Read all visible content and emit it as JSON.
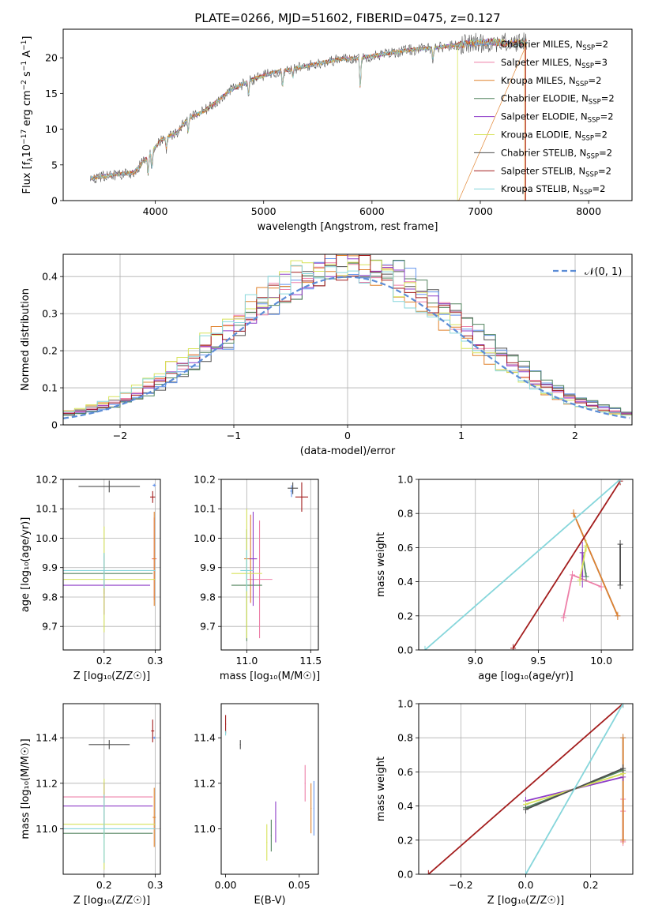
{
  "figure": {
    "title": "PLATE=0266, MJD=51602, FIBERID=0475, z=0.127"
  },
  "models": [
    {
      "name": "Chabrier MILES",
      "nssp": "2",
      "color": "#6495ed"
    },
    {
      "name": "Salpeter MILES",
      "nssp": "3",
      "color": "#ed7fa8"
    },
    {
      "name": "Kroupa MILES",
      "nssp": "2",
      "color": "#e0822c"
    },
    {
      "name": "Chabrier ELODIE",
      "nssp": "2",
      "color": "#52835e"
    },
    {
      "name": "Salpeter ELODIE",
      "nssp": "2",
      "color": "#8e3cc8"
    },
    {
      "name": "Kroupa ELODIE",
      "nssp": "2",
      "color": "#d7e35a"
    },
    {
      "name": "Chabrier STELIB",
      "nssp": "2",
      "color": "#4d4d4d"
    },
    {
      "name": "Salpeter STELIB",
      "nssp": "2",
      "color": "#a31d1d"
    },
    {
      "name": "Kroupa STELIB",
      "nssp": "2",
      "color": "#86d6db"
    }
  ],
  "chart_data": [
    {
      "id": "spectrum",
      "type": "line",
      "xlabel": "wavelength [Angstrom, rest frame]",
      "ylabel_parts": [
        "Flux [f",
        "λ",
        "10",
        "−17",
        " erg cm",
        "−2",
        " s",
        "−1",
        " A",
        "−1",
        "]"
      ],
      "xlim": [
        3150,
        8400
      ],
      "ylim": [
        0,
        24
      ],
      "xticks": [
        4000,
        5000,
        6000,
        7000,
        8000
      ],
      "yticks": [
        0,
        5,
        10,
        15,
        20
      ],
      "grid": false,
      "legend": "upper right",
      "legend_suffix": "SSP",
      "continuum": [
        [
          3400,
          3.1
        ],
        [
          3600,
          3.6
        ],
        [
          3800,
          3.9
        ],
        [
          3950,
          6.5
        ],
        [
          4050,
          8.5
        ],
        [
          4200,
          9.5
        ],
        [
          4300,
          11.5
        ],
        [
          4450,
          12.5
        ],
        [
          4700,
          15.5
        ],
        [
          4900,
          17
        ],
        [
          5100,
          18
        ],
        [
          5300,
          18.5
        ],
        [
          5500,
          19.2
        ],
        [
          5700,
          19.8
        ],
        [
          5900,
          20
        ],
        [
          6100,
          20.5
        ],
        [
          6300,
          21
        ],
        [
          6500,
          21.3
        ],
        [
          6700,
          21.6
        ],
        [
          6900,
          22
        ],
        [
          7100,
          22.2
        ],
        [
          7300,
          22
        ],
        [
          7500,
          22.4
        ],
        [
          7700,
          22.7
        ],
        [
          7900,
          22.8
        ],
        [
          8100,
          22.9
        ],
        [
          8200,
          22.8
        ]
      ]
    },
    {
      "id": "residuals",
      "type": "histogram",
      "xlabel": "(data-model)/error",
      "ylabel": "Normed distribution",
      "xlim": [
        -2.5,
        2.5
      ],
      "ylim": [
        0,
        0.46
      ],
      "xticks": [
        -2,
        -1,
        0,
        1,
        2
      ],
      "yticks": [
        0,
        0.1,
        0.2,
        0.3,
        0.4
      ],
      "grid": true,
      "legend": "upper right",
      "reference": {
        "label": "𝒩(0, 1)",
        "mean": 0,
        "sigma": 1,
        "color": "#5b8cd6"
      }
    },
    {
      "id": "age-vs-Z",
      "type": "errorbar",
      "xlabel": "Z [log₁₀(Z/Z☉)]",
      "ylabel": "age  [log₁₀(age/yr)]",
      "xlim": [
        0.12,
        0.31
      ],
      "ylim": [
        9.62,
        10.2
      ],
      "xticks": [
        0.2,
        0.3
      ],
      "yticks": [
        9.7,
        9.8,
        9.9,
        10.0,
        10.1,
        10.2
      ],
      "grid": true,
      "points": [
        {
          "model": 0,
          "x": 0.298,
          "y": 10.18,
          "xerr": 0.003,
          "yerr": 0.005
        },
        {
          "model": 1,
          "x": 0.298,
          "y": 9.93,
          "xerr": 0.005,
          "yerr": 0.14
        },
        {
          "model": 2,
          "x": 0.298,
          "y": 9.93,
          "xerr": 0.003,
          "yerr": 0.16
        },
        {
          "model": 3,
          "x": 0.2,
          "y": 9.88,
          "xerr": 0.095,
          "yerr": 0.07
        },
        {
          "model": 4,
          "x": 0.2,
          "y": 9.84,
          "xerr": 0.09,
          "yerr": 0.1
        },
        {
          "model": 5,
          "x": 0.2,
          "y": 9.86,
          "xerr": 0.1,
          "yerr": 0.18
        },
        {
          "model": 6,
          "x": 0.21,
          "y": 10.176,
          "xerr": 0.06,
          "yerr": 0.02
        },
        {
          "model": 7,
          "x": 0.295,
          "y": 10.14,
          "xerr": 0.005,
          "yerr": 0.02
        },
        {
          "model": 8,
          "x": 0.2,
          "y": 9.89,
          "xerr": 0.1,
          "yerr": 0.06
        }
      ]
    },
    {
      "id": "age-vs-mass",
      "type": "errorbar",
      "xlabel": "mass [log₁₀(M/M☉)]",
      "ylabel": "",
      "xlim": [
        10.8,
        11.56
      ],
      "ylim": [
        9.62,
        10.2
      ],
      "xticks": [
        11.0,
        11.5
      ],
      "yticks": [
        9.7,
        9.8,
        9.9,
        10.0,
        10.1,
        10.2
      ],
      "grid": true,
      "points": [
        {
          "model": 0,
          "x": 11.35,
          "y": 10.16,
          "xerr": 0.01,
          "yerr": 0.02
        },
        {
          "model": 1,
          "x": 11.1,
          "y": 9.86,
          "xerr": 0.1,
          "yerr": 0.2
        },
        {
          "model": 2,
          "x": 11.03,
          "y": 9.93,
          "xerr": 0.05,
          "yerr": 0.15
        },
        {
          "model": 3,
          "x": 11.0,
          "y": 9.84,
          "xerr": 0.12,
          "yerr": 0.19
        },
        {
          "model": 4,
          "x": 11.05,
          "y": 9.93,
          "xerr": 0.03,
          "yerr": 0.16
        },
        {
          "model": 5,
          "x": 11.0,
          "y": 9.88,
          "xerr": 0.12,
          "yerr": 0.22
        },
        {
          "model": 6,
          "x": 11.36,
          "y": 10.17,
          "xerr": 0.04,
          "yerr": 0.02
        },
        {
          "model": 7,
          "x": 11.43,
          "y": 10.14,
          "xerr": 0.05,
          "yerr": 0.05
        },
        {
          "model": 8,
          "x": 11.0,
          "y": 9.89,
          "xerr": 0.05,
          "yerr": 0.07
        }
      ]
    },
    {
      "id": "weight-vs-age",
      "type": "line",
      "xlabel": "age  [log₁₀(age/yr)]",
      "ylabel": "mass weight",
      "xlim": [
        8.55,
        10.25
      ],
      "ylim": [
        0,
        1
      ],
      "xticks": [
        9.0,
        9.5,
        10.0
      ],
      "yticks": [
        0,
        0.2,
        0.4,
        0.6,
        0.8,
        1.0
      ],
      "grid": true,
      "series": [
        {
          "model": 0,
          "x": [
            9.78,
            10.13
          ],
          "y": [
            0.8,
            0.2
          ],
          "yerr": 0.003
        },
        {
          "model": 1,
          "x": [
            9.7,
            9.77,
            10.0
          ],
          "y": [
            0.19,
            0.44,
            0.37
          ],
          "yerr": 0.01
        },
        {
          "model": 2,
          "x": [
            9.78,
            10.13
          ],
          "y": [
            0.8,
            0.2
          ],
          "yerr": 0.01
        },
        {
          "model": 3,
          "x": [
            9.85,
            9.88
          ],
          "y": [
            0.57,
            0.43
          ],
          "yerr": 0.01
        },
        {
          "model": 4,
          "x": [
            9.85,
            9.85
          ],
          "y": [
            0.57,
            0.43
          ],
          "yerr": 0.05
        },
        {
          "model": 5,
          "x": [
            9.83,
            9.88
          ],
          "y": [
            0.41,
            0.61
          ],
          "yerr": 0.02
        },
        {
          "model": 6,
          "x": [
            10.15,
            10.15
          ],
          "y": [
            0.38,
            0.62
          ],
          "yerr": 0.01
        },
        {
          "model": 7,
          "x": [
            9.3,
            10.15
          ],
          "y": [
            0.01,
            0.99
          ],
          "yerr": 0.01
        },
        {
          "model": 8,
          "x": [
            8.6,
            10.15
          ],
          "y": [
            0.0,
            1.0
          ],
          "yerr": 0.01
        }
      ]
    },
    {
      "id": "mass-vs-Z",
      "type": "errorbar",
      "xlabel": "Z [log₁₀(Z/Z☉)]",
      "ylabel": "mass [log₁₀(M/M☉)]",
      "xlim": [
        0.12,
        0.31
      ],
      "ylim": [
        10.8,
        11.55
      ],
      "xticks": [
        0.2,
        0.3
      ],
      "yticks": [
        11.0,
        11.2,
        11.4
      ],
      "grid": true,
      "points": [
        {
          "model": 0,
          "x": 0.298,
          "y": 11.4,
          "xerr": 0.003,
          "yerr": 0.005
        },
        {
          "model": 1,
          "x": 0.2,
          "y": 11.14,
          "xerr": 0.095,
          "yerr": 0.02
        },
        {
          "model": 2,
          "x": 0.298,
          "y": 11.05,
          "xerr": 0.003,
          "yerr": 0.13
        },
        {
          "model": 3,
          "x": 0.2,
          "y": 10.98,
          "xerr": 0.095,
          "yerr": 0.02
        },
        {
          "model": 4,
          "x": 0.2,
          "y": 11.1,
          "xerr": 0.095,
          "yerr": 0.1
        },
        {
          "model": 5,
          "x": 0.2,
          "y": 11.02,
          "xerr": 0.1,
          "yerr": 0.2
        },
        {
          "model": 6,
          "x": 0.21,
          "y": 11.37,
          "xerr": 0.04,
          "yerr": 0.02
        },
        {
          "model": 7,
          "x": 0.295,
          "y": 11.43,
          "xerr": 0.003,
          "yerr": 0.05
        },
        {
          "model": 8,
          "x": 0.2,
          "y": 11.0,
          "xerr": 0.1,
          "yerr": 0.15
        }
      ]
    },
    {
      "id": "mass-vs-EBV",
      "type": "errorbar",
      "xlabel": "E(B-V)",
      "ylabel": "",
      "xlim": [
        -0.003,
        0.063
      ],
      "ylim": [
        10.8,
        11.55
      ],
      "xticks": [
        0.0,
        0.05
      ],
      "yticks": [
        11.0,
        11.2,
        11.4
      ],
      "grid": false,
      "points": [
        {
          "model": 0,
          "x": 0.06,
          "y": 11.09,
          "xerr": 0.0003,
          "yerr": 0.12
        },
        {
          "model": 1,
          "x": 0.054,
          "y": 11.2,
          "xerr": 0.0003,
          "yerr": 0.08
        },
        {
          "model": 2,
          "x": 0.058,
          "y": 11.09,
          "xerr": 0.0003,
          "yerr": 0.11
        },
        {
          "model": 3,
          "x": 0.031,
          "y": 10.97,
          "xerr": 0.0003,
          "yerr": 0.07
        },
        {
          "model": 4,
          "x": 0.034,
          "y": 11.03,
          "xerr": 0.0003,
          "yerr": 0.09
        },
        {
          "model": 5,
          "x": 0.028,
          "y": 10.94,
          "xerr": 0.0003,
          "yerr": 0.08
        },
        {
          "model": 6,
          "x": 0.01,
          "y": 11.37,
          "xerr": 0.0003,
          "yerr": 0.02
        },
        {
          "model": 7,
          "x": 0.0,
          "y": 11.46,
          "xerr": 0.0003,
          "yerr": 0.04
        },
        {
          "model": 8,
          "x": 0.0,
          "y": 11.42,
          "xerr": 0.0003,
          "yerr": 0.01
        }
      ]
    },
    {
      "id": "weight-vs-Z",
      "type": "line",
      "xlabel": "Z [log₁₀(Z/Z☉)]",
      "ylabel": "mass weight",
      "xlim": [
        -0.33,
        0.33
      ],
      "ylim": [
        0,
        1
      ],
      "xticks": [
        -0.2,
        0.0,
        0.2
      ],
      "yticks": [
        0,
        0.2,
        0.4,
        0.6,
        0.8,
        1.0
      ],
      "grid": true,
      "series": [
        {
          "model": 0,
          "x": [
            0.3,
            0.3
          ],
          "y": [
            0.2,
            0.8
          ],
          "yerr": 0.003
        },
        {
          "model": 1,
          "x": [
            0.3,
            0.3,
            0.3
          ],
          "y": [
            0.19,
            0.37,
            0.44
          ],
          "yerr": 0.01
        },
        {
          "model": 2,
          "x": [
            0.3,
            0.3
          ],
          "y": [
            0.2,
            0.8
          ],
          "yerr": 0.01
        },
        {
          "model": 3,
          "x": [
            0.0,
            0.3
          ],
          "y": [
            0.39,
            0.61
          ],
          "yerr": 0.005
        },
        {
          "model": 4,
          "x": [
            0.0,
            0.3
          ],
          "y": [
            0.43,
            0.57
          ],
          "yerr": 0.01
        },
        {
          "model": 5,
          "x": [
            0.0,
            0.3
          ],
          "y": [
            0.41,
            0.59
          ],
          "yerr": 0.005
        },
        {
          "model": 6,
          "x": [
            0.0,
            0.3
          ],
          "y": [
            0.38,
            0.62
          ],
          "yerr": 0.01
        },
        {
          "model": 7,
          "x": [
            -0.3,
            0.3
          ],
          "y": [
            0.0,
            1.0
          ],
          "yerr": 0.01
        },
        {
          "model": 8,
          "x": [
            0.0,
            0.3
          ],
          "y": [
            0.0,
            1.0
          ],
          "yerr": 0.01
        }
      ]
    }
  ]
}
